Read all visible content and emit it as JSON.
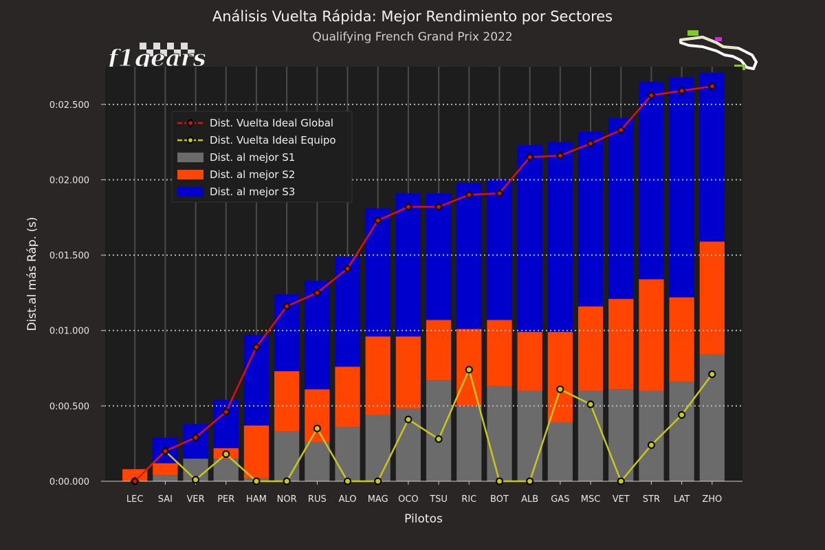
{
  "title": "Análisis Vuelta Rápida: Mejor Rendimiento por Sectores",
  "subtitle": "Qualifying French Grand Prix 2022",
  "logo_text": "f1gears",
  "colors": {
    "background": "#292625",
    "plot_bg": "#1d1d1d",
    "s1": "#6b6b6b",
    "s2": "#ff4500",
    "s3": "#0000cc",
    "global_line": "#dd1111",
    "team_line": "#c8c81a"
  },
  "chart_data": {
    "type": "bar",
    "stacked": true,
    "xlabel": "Pilotos",
    "ylabel": "Dist.al más Ráp. (s)",
    "ylim": [
      0,
      2.75
    ],
    "yticks": [
      0,
      0.5,
      1.0,
      1.5,
      2.0,
      2.5
    ],
    "ytick_labels": [
      "0:00.000",
      "0:00.500",
      "0:01.000",
      "0:01.500",
      "0:02.000",
      "0:02.500"
    ],
    "categories": [
      "LEC",
      "SAI",
      "VER",
      "PER",
      "HAM",
      "NOR",
      "RUS",
      "ALO",
      "MAG",
      "OCO",
      "TSU",
      "RIC",
      "BOT",
      "ALB",
      "GAS",
      "MSC",
      "VET",
      "STR",
      "LAT",
      "ZHO"
    ],
    "series": [
      {
        "name": "Dist. al mejor S1",
        "kind": "bar",
        "values": [
          0.0,
          0.04,
          0.15,
          0.15,
          0.02,
          0.33,
          0.26,
          0.36,
          0.44,
          0.48,
          0.67,
          0.5,
          0.63,
          0.6,
          0.39,
          0.6,
          0.61,
          0.6,
          0.66,
          0.84
        ]
      },
      {
        "name": "Dist. al mejor S2",
        "kind": "bar",
        "values": [
          0.08,
          0.08,
          0.0,
          0.07,
          0.35,
          0.4,
          0.35,
          0.4,
          0.52,
          0.48,
          0.4,
          0.51,
          0.44,
          0.39,
          0.6,
          0.56,
          0.6,
          0.74,
          0.56,
          0.75
        ]
      },
      {
        "name": "Dist. al mejor S3",
        "kind": "bar",
        "values": [
          0.0,
          0.17,
          0.23,
          0.32,
          0.6,
          0.51,
          0.72,
          0.73,
          0.85,
          0.95,
          0.84,
          0.97,
          0.93,
          1.24,
          1.26,
          1.16,
          1.2,
          1.31,
          1.46,
          1.12
        ]
      },
      {
        "name": "Dist. Vuelta Ideal Global",
        "kind": "line",
        "values": [
          0.0,
          0.2,
          0.29,
          0.46,
          0.89,
          1.16,
          1.25,
          1.41,
          1.73,
          1.82,
          1.82,
          1.9,
          1.91,
          2.15,
          2.16,
          2.24,
          2.33,
          2.56,
          2.59,
          2.62
        ]
      },
      {
        "name": "Dist. Vuelta Ideal Equipo",
        "kind": "line",
        "values": [
          0.0,
          0.2,
          0.01,
          0.18,
          0.0,
          0.0,
          0.35,
          0.0,
          0.0,
          0.41,
          0.28,
          0.74,
          0.0,
          0.0,
          0.61,
          0.51,
          0.0,
          0.24,
          0.44,
          0.71
        ]
      }
    ],
    "legend_order": [
      "Dist. Vuelta Ideal Global",
      "Dist. Vuelta Ideal Equipo",
      "Dist. al mejor S1",
      "Dist. al mejor S2",
      "Dist. al mejor S3"
    ],
    "legend_position": "upper-left",
    "grid": "y-dotted"
  }
}
